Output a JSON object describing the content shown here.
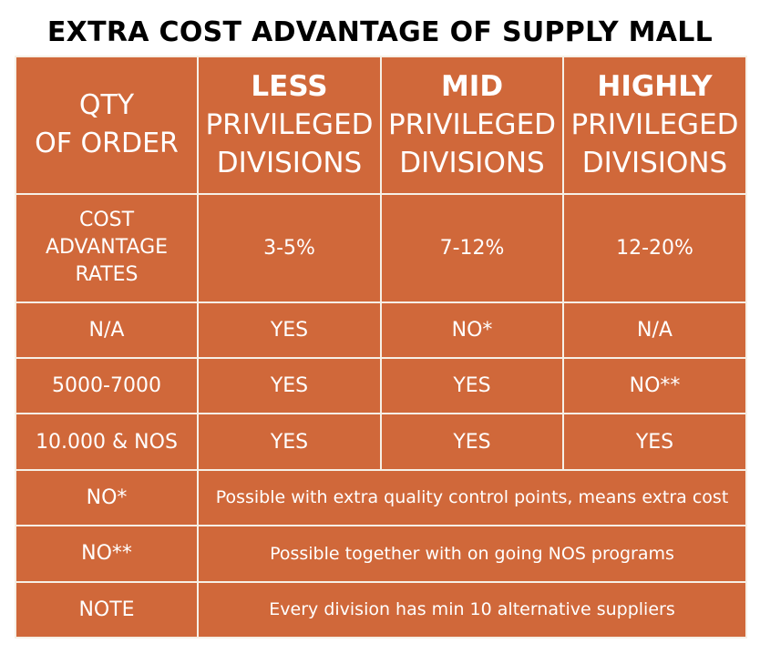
{
  "title": "EXTRA COST ADVANTAGE OF SUPPLY MALL",
  "header": {
    "qty_line1": "QTY",
    "qty_line2": "OF ORDER",
    "columns": [
      {
        "bold": "LESS",
        "line2": "PRIVILEGED",
        "line3": "DIVISIONS"
      },
      {
        "bold": "MID",
        "line2": "PRIVILEGED",
        "line3": "DIVISIONS"
      },
      {
        "bold": "HIGHLY",
        "line2": "PRIVILEGED",
        "line3": "DIVISIONS"
      }
    ]
  },
  "cost_row": {
    "label_line1": "COST",
    "label_line2": "ADVANTAGE",
    "label_line3": "RATES",
    "values": [
      "3-5%",
      "7-12%",
      "12-20%"
    ]
  },
  "rows": [
    {
      "label": "N/A",
      "values": [
        "YES",
        "NO*",
        "N/A"
      ]
    },
    {
      "label": "5000-7000",
      "values": [
        "YES",
        "YES",
        "NO**"
      ]
    },
    {
      "label": "10.000 & NOS",
      "values": [
        "YES",
        "YES",
        "YES"
      ]
    }
  ],
  "notes": [
    {
      "label": "NO*",
      "text": "Possible with extra quality control points, means extra cost"
    },
    {
      "label": "NO**",
      "text": "Possible together with on going NOS programs"
    },
    {
      "label": "NOTE",
      "text": "Every division has min 10 alternative suppliers"
    }
  ]
}
